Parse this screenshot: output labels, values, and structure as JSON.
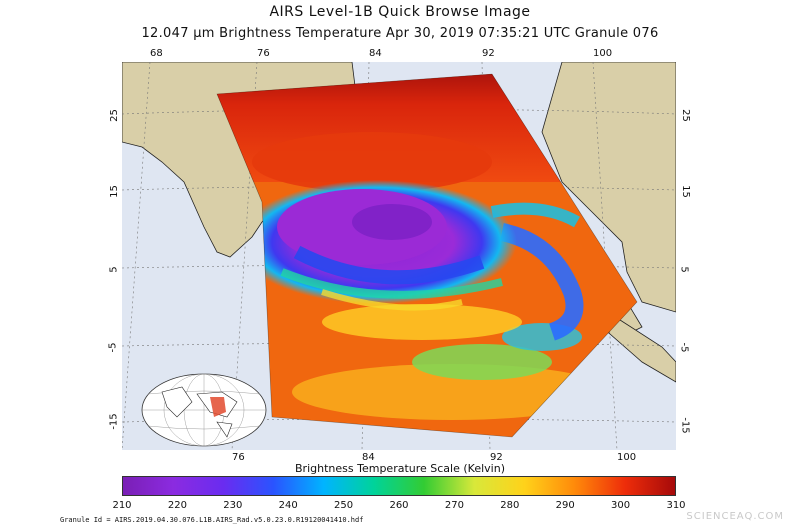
{
  "header": {
    "title": "AIRS Level-1B Quick Browse Image",
    "subtitle": "12.047 µm Brightness Temperature   Apr 30, 2019 07:35:21 UTC   Granule 076"
  },
  "map": {
    "top_lon_labels": [
      "68",
      "76",
      "84",
      "92",
      "100"
    ],
    "bottom_lon_labels": [
      "76",
      "84",
      "92",
      "100"
    ],
    "left_lat_labels": [
      "25",
      "15",
      "5",
      "-5",
      "-15"
    ],
    "right_lat_labels": [
      "25",
      "15",
      "5",
      "-5",
      "-15"
    ],
    "colors": {
      "ocean": "#dfe6f2",
      "land": "#d9cfa8",
      "grid": "#777777",
      "border": "#222222"
    }
  },
  "colorbar": {
    "title": "Brightness Temperature Scale (Kelvin)",
    "ticks": [
      "210",
      "220",
      "230",
      "240",
      "250",
      "260",
      "270",
      "280",
      "290",
      "300",
      "310"
    ],
    "min": 210,
    "max": 310,
    "stops": [
      "#7a1fb5",
      "#8b2be0",
      "#6a2cf0",
      "#2a54ff",
      "#00b4ff",
      "#00d39a",
      "#33cc33",
      "#d8e83a",
      "#ffd21a",
      "#ff8a0a",
      "#ee2d0a",
      "#a60a0a"
    ]
  },
  "footer": {
    "granule_id": "Granule Id = AIRS.2019.04.30.076.L1B.AIRS_Rad.v5.0.23.0.R19120041410.hdf",
    "watermark": "SCIENCEAQ.COM"
  }
}
